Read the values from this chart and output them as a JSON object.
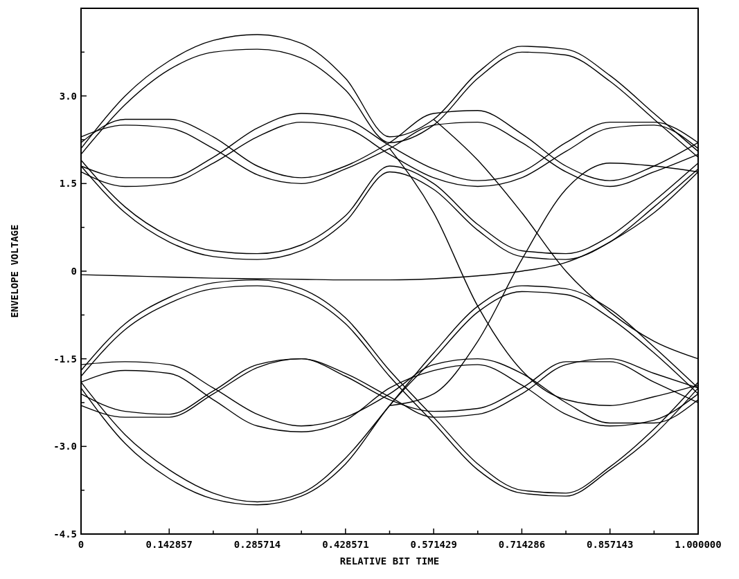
{
  "chart_data": {
    "type": "line",
    "xlabel": "RELATIVE BIT TIME",
    "ylabel": "ENVELOPE VOLTAGE",
    "x": [
      0,
      0.0714,
      0.1429,
      0.2143,
      0.2857,
      0.3571,
      0.4286,
      0.5,
      0.5714,
      0.6429,
      0.7143,
      0.7857,
      0.8571,
      0.9286,
      1
    ],
    "xlim": [
      0,
      1
    ],
    "ylim": [
      -4.5,
      4.5
    ],
    "xticks": [
      {
        "value": 0,
        "label": "0"
      },
      {
        "value": 0.0714,
        "label": null
      },
      0.142857,
      {
        "value": 0.2143,
        "label": null
      },
      0.285714,
      {
        "value": 0.3571,
        "label": null
      },
      0.428571,
      {
        "value": 0.5,
        "label": null
      },
      0.571429,
      {
        "value": 0.6429,
        "label": null
      },
      0.714286,
      {
        "value": 0.7857,
        "label": null
      },
      0.857143,
      {
        "value": 0.9286,
        "label": null
      },
      {
        "value": 1,
        "label": "1.000000"
      }
    ],
    "yticks": [
      {
        "value": -4.5,
        "label": "-4.5"
      },
      {
        "value": -3.75,
        "label": null
      },
      {
        "value": -3,
        "label": "-3.0"
      },
      {
        "value": -2.25,
        "label": null
      },
      {
        "value": -1.5,
        "label": "-1.5"
      },
      {
        "value": -0.75,
        "label": null
      },
      {
        "value": 0,
        "label": "0"
      },
      {
        "value": 0.75,
        "label": null
      },
      {
        "value": 1.5,
        "label": "1.5"
      },
      {
        "value": 2.25,
        "label": null
      },
      {
        "value": 3,
        "label": "3.0"
      },
      {
        "value": 3.75,
        "label": null
      }
    ],
    "grid": false,
    "marker": "none",
    "line_style": "solid",
    "series": [
      {
        "color": "#000000",
        "values": [
          2.1,
          3.0,
          3.6,
          3.95,
          4.05,
          3.9,
          3.3,
          2.3,
          2.6,
          3.4,
          3.85,
          3.8,
          3.35,
          2.7,
          2.05
        ]
      },
      {
        "color": "#000000",
        "values": [
          2.0,
          2.85,
          3.45,
          3.75,
          3.8,
          3.65,
          3.1,
          2.2,
          2.5,
          3.3,
          3.75,
          3.7,
          3.25,
          2.6,
          1.95
        ]
      },
      {
        "color": "#000000",
        "values": [
          1.9,
          1.1,
          0.6,
          0.35,
          0.3,
          0.45,
          0.95,
          1.8,
          1.5,
          0.8,
          0.35,
          0.3,
          0.6,
          1.2,
          1.85
        ]
      },
      {
        "color": "#000000",
        "values": [
          1.8,
          1.0,
          0.5,
          0.25,
          0.2,
          0.35,
          0.85,
          1.7,
          1.4,
          0.7,
          0.25,
          0.2,
          0.5,
          1.1,
          1.75
        ]
      },
      {
        "color": "#000000",
        "values": [
          2.2,
          2.6,
          2.6,
          2.3,
          1.8,
          1.6,
          1.8,
          2.2,
          2.7,
          2.75,
          2.35,
          1.8,
          1.55,
          1.8,
          2.2
        ]
      },
      {
        "color": "#000000",
        "values": [
          1.8,
          1.6,
          1.6,
          1.95,
          2.45,
          2.7,
          2.6,
          2.15,
          1.75,
          1.55,
          1.7,
          2.2,
          2.55,
          2.55,
          2.2
        ]
      },
      {
        "color": "#000000",
        "values": [
          2.3,
          2.5,
          2.45,
          2.1,
          1.65,
          1.5,
          1.75,
          2.1,
          2.5,
          2.55,
          2.2,
          1.7,
          1.45,
          1.7,
          2.0
        ]
      },
      {
        "color": "#000000",
        "values": [
          1.7,
          1.45,
          1.5,
          1.85,
          2.3,
          2.55,
          2.45,
          2.0,
          1.6,
          1.45,
          1.6,
          2.05,
          2.45,
          2.5,
          2.1
        ]
      },
      {
        "color": "#000000",
        "values": [
          -0.06,
          -0.08,
          -0.1,
          -0.12,
          -0.13,
          -0.14,
          -0.15,
          -0.15,
          -0.13,
          -0.08,
          0.0,
          0.15,
          0.5,
          1.0,
          1.7
        ]
      },
      {
        "color": "#000000",
        "values": [
          null,
          null,
          null,
          null,
          null,
          null,
          null,
          2.1,
          1.0,
          -0.6,
          -1.7,
          -2.2,
          -2.3,
          -2.15,
          -1.95
        ]
      },
      {
        "color": "#000000",
        "values": [
          null,
          null,
          null,
          null,
          null,
          null,
          null,
          null,
          2.6,
          1.9,
          1.0,
          0.0,
          -0.7,
          -1.2,
          -1.5
        ]
      },
      {
        "color": "#000000",
        "values": [
          null,
          null,
          null,
          null,
          null,
          null,
          null,
          -2.3,
          -2.1,
          -1.2,
          0.2,
          1.4,
          1.85,
          1.8,
          1.7
        ]
      },
      {
        "color": "#000000",
        "values": [
          -1.9,
          -2.8,
          -3.4,
          -3.8,
          -3.95,
          -3.8,
          -3.2,
          -2.3,
          -1.4,
          -0.6,
          -0.25,
          -0.3,
          -0.65,
          -1.3,
          -2.0
        ]
      },
      {
        "color": "#000000",
        "values": [
          -2.0,
          -2.95,
          -3.55,
          -3.9,
          -4.0,
          -3.85,
          -3.3,
          -2.3,
          -1.5,
          -0.7,
          -0.35,
          -0.4,
          -0.8,
          -1.4,
          -2.1
        ]
      },
      {
        "color": "#000000",
        "values": [
          -1.8,
          -1.0,
          -0.55,
          -0.3,
          -0.25,
          -0.4,
          -0.9,
          -1.8,
          -2.6,
          -3.4,
          -3.8,
          -3.85,
          -3.4,
          -2.8,
          -2.0
        ]
      },
      {
        "color": "#000000",
        "values": [
          -1.7,
          -0.9,
          -0.45,
          -0.2,
          -0.15,
          -0.3,
          -0.8,
          -1.7,
          -2.5,
          -3.3,
          -3.75,
          -3.8,
          -3.35,
          -2.7,
          -1.9
        ]
      },
      {
        "color": "#000000",
        "values": [
          -1.6,
          -1.55,
          -1.6,
          -2.0,
          -2.45,
          -2.65,
          -2.5,
          -2.1,
          -1.6,
          -1.5,
          -1.75,
          -2.25,
          -2.6,
          -2.6,
          -2.2
        ]
      },
      {
        "color": "#000000",
        "values": [
          -2.3,
          -2.5,
          -2.5,
          -2.1,
          -1.65,
          -1.5,
          -1.75,
          -2.15,
          -2.5,
          -2.45,
          -2.1,
          -1.6,
          -1.5,
          -1.75,
          -2.0
        ]
      },
      {
        "color": "#000000",
        "values": [
          -1.9,
          -1.7,
          -1.75,
          -2.2,
          -2.65,
          -2.75,
          -2.55,
          -2.0,
          -1.7,
          -1.6,
          -1.95,
          -2.45,
          -2.65,
          -2.55,
          -2.1
        ]
      },
      {
        "color": "#000000",
        "values": [
          -2.1,
          -2.4,
          -2.45,
          -2.05,
          -1.6,
          -1.5,
          -1.8,
          -2.2,
          -2.4,
          -2.35,
          -2.0,
          -1.55,
          -1.55,
          -1.9,
          -2.25
        ]
      }
    ]
  }
}
